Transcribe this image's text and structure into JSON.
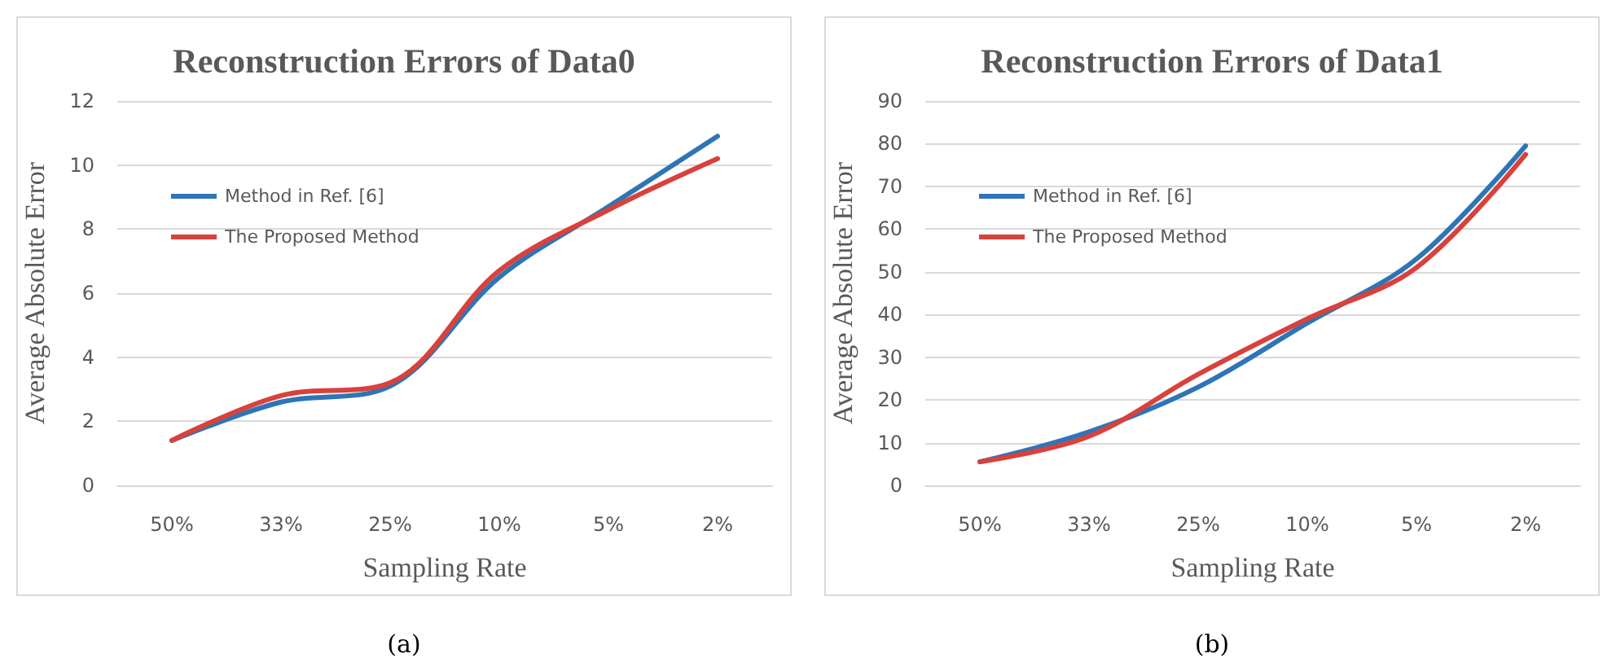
{
  "chart_data": [
    {
      "type": "line",
      "title": "Reconstruction Errors of Data0",
      "xlabel": "Sampling Rate",
      "ylabel": "Average Absolute Error",
      "categories": [
        "50%",
        "33%",
        "25%",
        "10%",
        "5%",
        "2%"
      ],
      "series": [
        {
          "name": "Method in Ref. [6]",
          "color": "#2e75b6",
          "values": [
            1.4,
            2.6,
            3.1,
            6.5,
            8.7,
            10.9
          ]
        },
        {
          "name": "The Proposed Method",
          "color": "#d9413c",
          "values": [
            1.4,
            2.8,
            3.2,
            6.7,
            8.6,
            10.2
          ]
        }
      ],
      "ylim": [
        0,
        12
      ],
      "yticks": [
        0,
        2,
        4,
        6,
        8,
        10,
        12
      ],
      "grid": "y",
      "legend": "top left",
      "marker": "none",
      "annotations": [
        "(a)"
      ]
    },
    {
      "type": "line",
      "title": "Reconstruction Errors of Data1",
      "xlabel": "Sampling Rate",
      "ylabel": "Average Absolute Error",
      "categories": [
        "50%",
        "33%",
        "25%",
        "10%",
        "5%",
        "2%"
      ],
      "series": [
        {
          "name": "Method in Ref. [6]",
          "color": "#2e75b6",
          "values": [
            5.5,
            12.5,
            23,
            38,
            53,
            79.5
          ]
        },
        {
          "name": "The Proposed Method",
          "color": "#d9413c",
          "values": [
            5.5,
            11.5,
            26,
            39,
            51,
            77.5
          ]
        }
      ],
      "ylim": [
        0,
        90
      ],
      "yticks": [
        0,
        10,
        20,
        30,
        40,
        50,
        60,
        70,
        80,
        90
      ],
      "grid": "y",
      "legend": "top left",
      "marker": "none",
      "annotations": [
        "(b)"
      ]
    }
  ]
}
